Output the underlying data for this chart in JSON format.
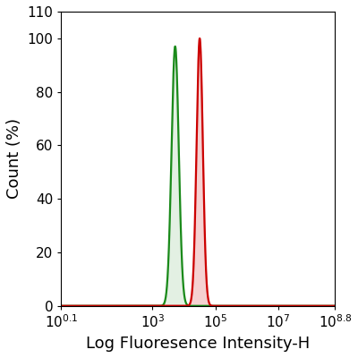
{
  "xlabel": "Log Fluoresence Intensity-H",
  "ylabel": "Count (%)",
  "xlim_log": [
    0.1,
    8.8
  ],
  "ylim": [
    0,
    110
  ],
  "yticks": [
    0,
    20,
    40,
    60,
    80,
    100,
    110
  ],
  "xtick_positions": [
    0.1,
    3,
    5,
    7,
    8.8
  ],
  "green_peak_log": 3.72,
  "green_sigma_log": 0.115,
  "green_peak_height": 97,
  "red_peak_log": 4.5,
  "red_sigma_log": 0.1,
  "red_peak_height": 100,
  "green_color": "#1a8a1a",
  "red_color": "#cc0000",
  "green_fill_alpha": 0.12,
  "red_fill_alpha": 0.18,
  "background_color": "#ffffff",
  "xlabel_fontsize": 13,
  "ylabel_fontsize": 13,
  "tick_fontsize": 11,
  "linewidth": 1.6
}
